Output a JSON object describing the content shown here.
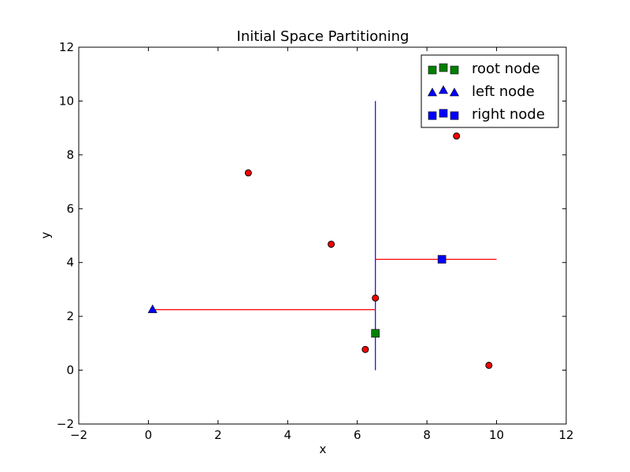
{
  "chart_data": {
    "type": "scatter",
    "title": "Initial Space Partitioning",
    "xlabel": "x",
    "ylabel": "y",
    "xlim": [
      -2,
      12
    ],
    "ylim": [
      -2,
      12
    ],
    "xticks": [
      -2,
      0,
      2,
      4,
      6,
      8,
      10,
      12
    ],
    "yticks": [
      -2,
      0,
      2,
      4,
      6,
      8,
      10,
      12
    ],
    "xtick_labels": [
      "−2",
      "0",
      "2",
      "4",
      "6",
      "8",
      "10",
      "12"
    ],
    "ytick_labels": [
      "−2",
      "0",
      "2",
      "4",
      "6",
      "8",
      "10",
      "12"
    ],
    "grid": false,
    "legend_position": "top-right",
    "points": {
      "color": "#ff0000",
      "x": [
        2.87,
        5.25,
        8.85,
        6.52,
        6.23,
        9.78
      ],
      "y": [
        7.33,
        4.68,
        8.7,
        2.68,
        0.77,
        0.18
      ]
    },
    "partition_lines": [
      {
        "orientation": "vertical",
        "x": 6.52,
        "y_range": [
          0,
          10
        ],
        "color": "#0000ff"
      },
      {
        "orientation": "horizontal",
        "y": 2.25,
        "x_range": [
          0.12,
          6.52
        ],
        "color": "#ff0000"
      },
      {
        "orientation": "horizontal",
        "y": 4.12,
        "x_range": [
          6.52,
          10
        ],
        "color": "#ff0000"
      }
    ],
    "series": [
      {
        "name": "root node",
        "marker": "square",
        "color": "#008000",
        "x": [
          6.52
        ],
        "y": [
          1.37
        ]
      },
      {
        "name": "left node",
        "marker": "triangle",
        "color": "#0000ff",
        "x": [
          0.12
        ],
        "y": [
          2.25
        ]
      },
      {
        "name": "right node",
        "marker": "square",
        "color": "#0000ff",
        "x": [
          8.43
        ],
        "y": [
          4.12
        ]
      }
    ]
  }
}
